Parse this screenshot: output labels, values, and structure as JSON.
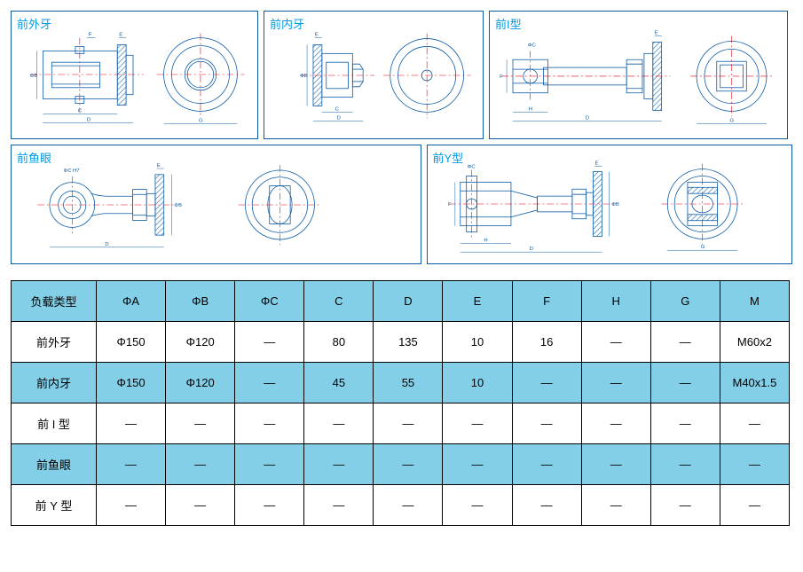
{
  "panels": {
    "p1": {
      "title": "前外牙"
    },
    "p2": {
      "title": "前内牙"
    },
    "p3": {
      "title": "前I型"
    },
    "p4": {
      "title": "前鱼眼"
    },
    "p5": {
      "title": "前Y型"
    }
  },
  "table": {
    "header_bg": "#84cfe8",
    "alt_row_bg": "#84cfe8",
    "border_color": "#000000",
    "font_size": 13,
    "columns": [
      "负载类型",
      "ΦA",
      "ΦB",
      "ΦC",
      "C",
      "D",
      "E",
      "F",
      "H",
      "G",
      "M"
    ],
    "rows": [
      {
        "hl": false,
        "cells": [
          "前外牙",
          "Φ150",
          "Φ120",
          "—",
          "80",
          "135",
          "10",
          "16",
          "—",
          "—",
          "M60x2"
        ]
      },
      {
        "hl": true,
        "cells": [
          "前内牙",
          "Φ150",
          "Φ120",
          "—",
          "45",
          "55",
          "10",
          "—",
          "—",
          "—",
          "M40x1.5"
        ]
      },
      {
        "hl": false,
        "cells": [
          "前 I 型",
          "—",
          "—",
          "—",
          "—",
          "—",
          "—",
          "—",
          "—",
          "—",
          "—"
        ]
      },
      {
        "hl": true,
        "cells": [
          "前鱼眼",
          "—",
          "—",
          "—",
          "—",
          "—",
          "—",
          "—",
          "—",
          "—",
          "—"
        ]
      },
      {
        "hl": false,
        "cells": [
          "前 Y 型",
          "—",
          "—",
          "—",
          "—",
          "—",
          "—",
          "—",
          "—",
          "—",
          "—"
        ]
      }
    ]
  },
  "svg_style": {
    "centerline_color": "#e30613",
    "centerline_dash": "8 3 2 3",
    "outline_color": "#0a5aa5",
    "outline_width": 0.8,
    "hatch_color": "#0a5aa5",
    "dim_color": "#0a5aa5",
    "dim_fontsize": 6,
    "fill": "none"
  }
}
